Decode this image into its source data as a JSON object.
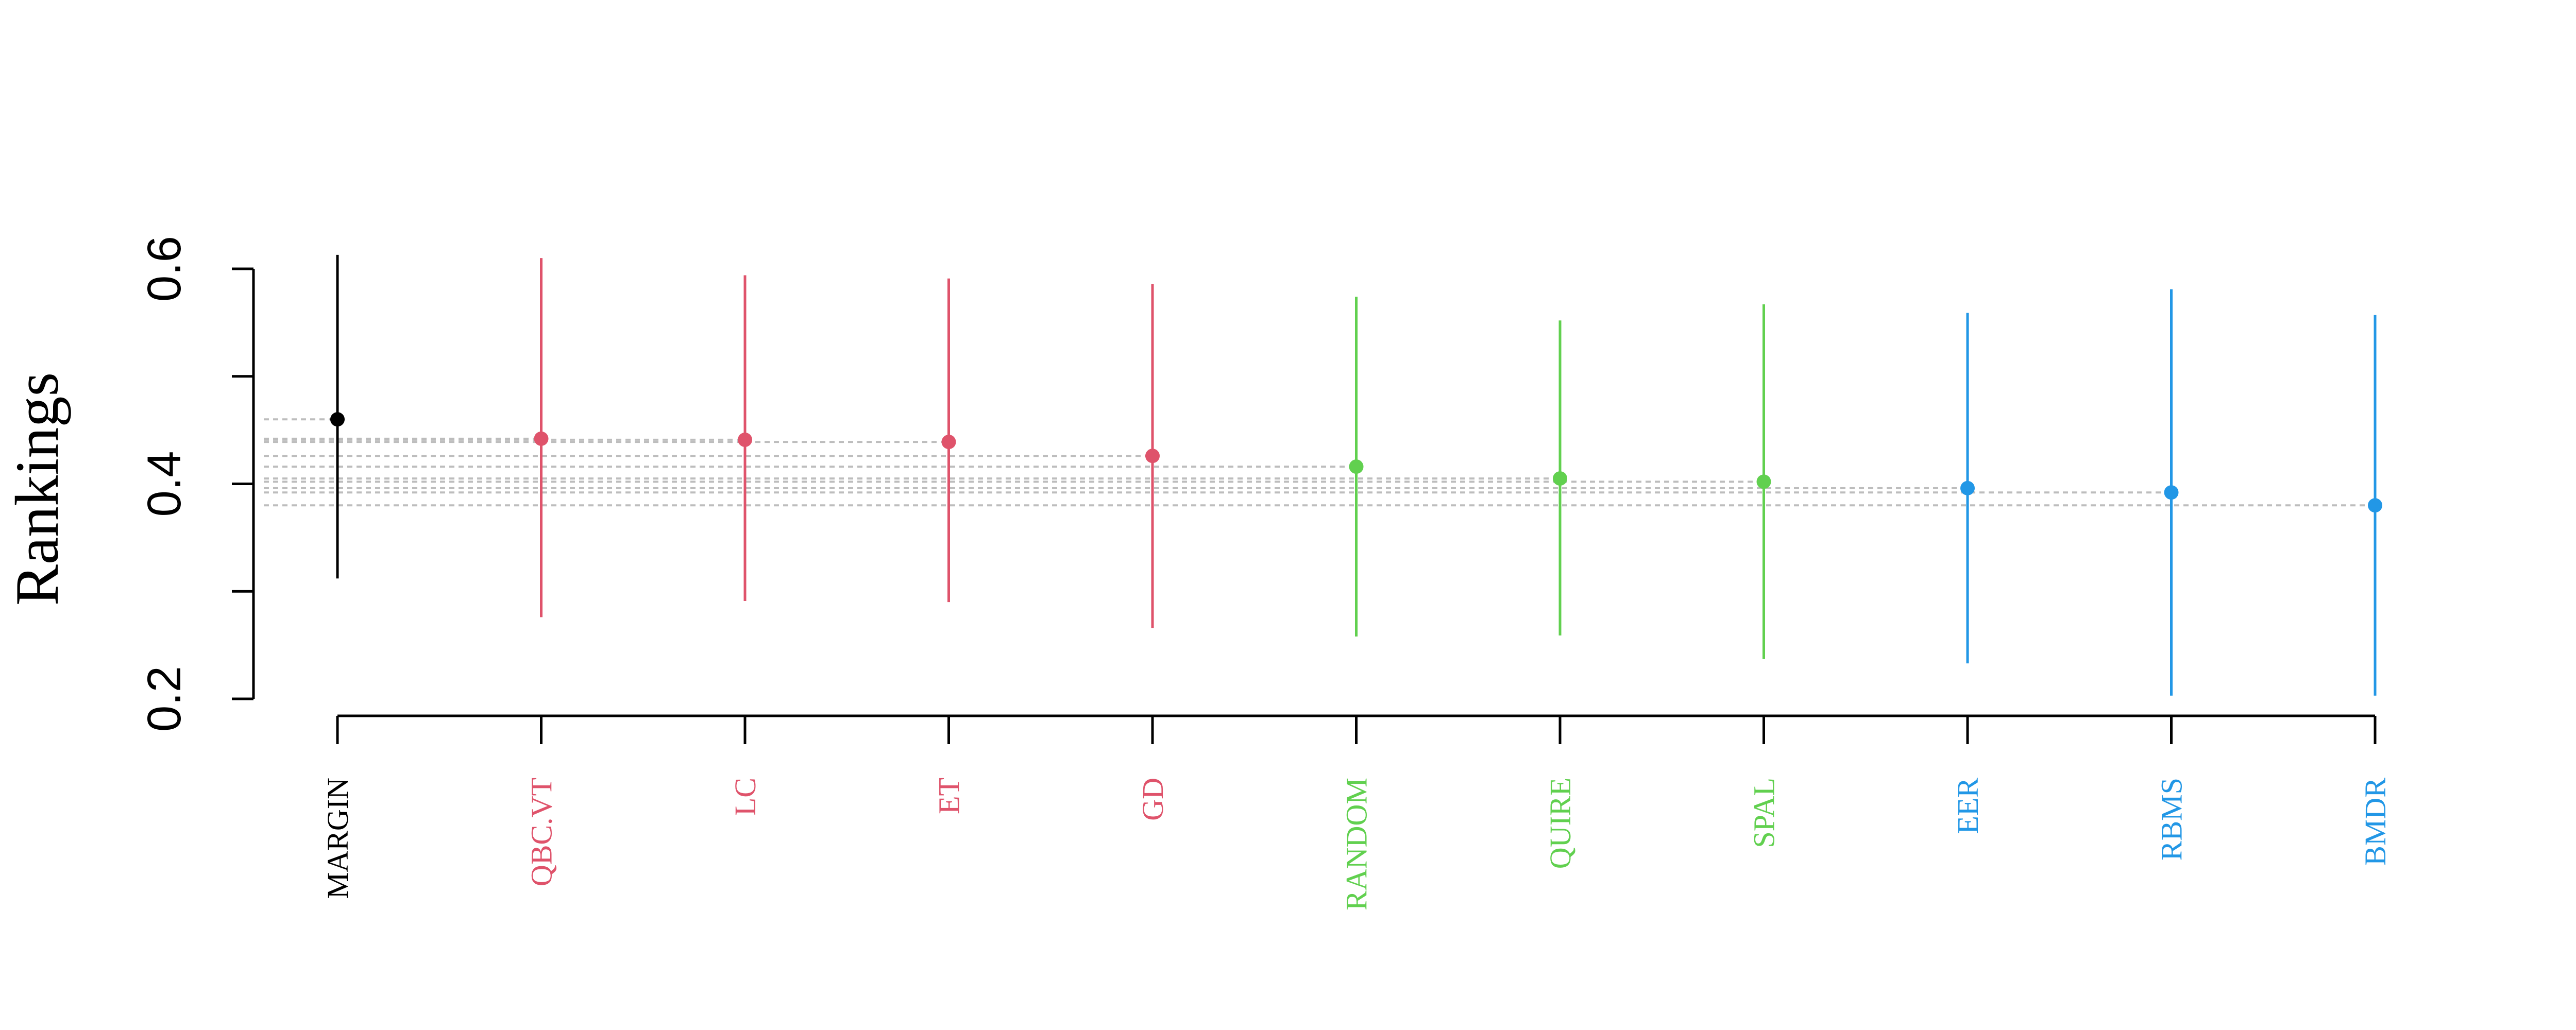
{
  "chart_data": {
    "type": "scatter",
    "title": "",
    "xlabel": "",
    "ylabel": "Rankings",
    "ylim": [
      0.2,
      0.6
    ],
    "yticks": [
      "0.2",
      "0.4",
      "0.6"
    ],
    "grid": false,
    "legend": "none",
    "reference_lines": "dotted horizontal lines at each mean value",
    "groups": [
      {
        "color": "#000000",
        "members": [
          "MARGIN"
        ]
      },
      {
        "color": "#DF536B",
        "members": [
          "QBC.VT",
          "LC",
          "ET",
          "GD"
        ]
      },
      {
        "color": "#61D04F",
        "members": [
          "RANDOM",
          "QUIRE",
          "SPAL"
        ]
      },
      {
        "color": "#2297E6",
        "members": [
          "EER",
          "RBMS",
          "BMDR"
        ]
      }
    ],
    "points": [
      {
        "label": "MARGIN",
        "mean": 0.46,
        "lower": 0.312,
        "upper": 0.613,
        "color": "#000000"
      },
      {
        "label": "QBC.VT",
        "mean": 0.442,
        "lower": 0.276,
        "upper": 0.61,
        "color": "#DF536B"
      },
      {
        "label": "LC",
        "mean": 0.441,
        "lower": 0.291,
        "upper": 0.594,
        "color": "#DF536B"
      },
      {
        "label": "ET",
        "mean": 0.439,
        "lower": 0.29,
        "upper": 0.591,
        "color": "#DF536B"
      },
      {
        "label": "GD",
        "mean": 0.426,
        "lower": 0.266,
        "upper": 0.586,
        "color": "#DF536B"
      },
      {
        "label": "RANDOM",
        "mean": 0.416,
        "lower": 0.258,
        "upper": 0.574,
        "color": "#61D04F"
      },
      {
        "label": "QUIRE",
        "mean": 0.405,
        "lower": 0.259,
        "upper": 0.552,
        "color": "#61D04F"
      },
      {
        "label": "SPAL",
        "mean": 0.402,
        "lower": 0.237,
        "upper": 0.567,
        "color": "#61D04F"
      },
      {
        "label": "EER",
        "mean": 0.396,
        "lower": 0.233,
        "upper": 0.559,
        "color": "#2297E6"
      },
      {
        "label": "RBMS",
        "mean": 0.392,
        "lower": 0.203,
        "upper": 0.581,
        "color": "#2297E6"
      },
      {
        "label": "BMDR",
        "mean": 0.38,
        "lower": 0.203,
        "upper": 0.557,
        "color": "#2297E6"
      }
    ]
  }
}
